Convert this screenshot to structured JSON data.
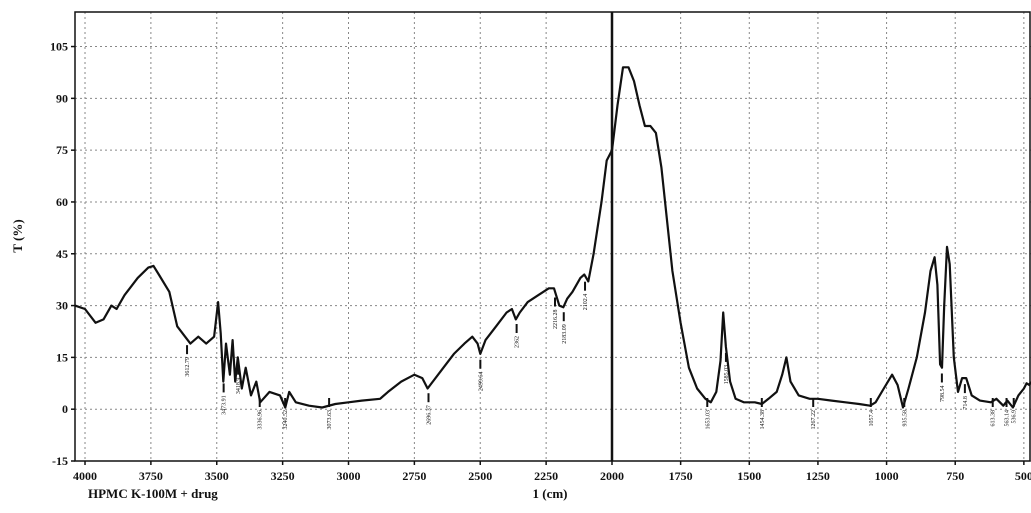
{
  "chart_data": [
    {
      "type": "line",
      "ylabel": "T (%)",
      "xlabel": "1 (cm)",
      "annotation": "HPMC K-100M + drug",
      "xlim": [
        4038,
        2000
      ],
      "ylim": [
        -15,
        115
      ],
      "xticks": [
        4000,
        3750,
        3500,
        3250,
        3000,
        2750,
        2500,
        2250
      ],
      "yticks": [
        -15,
        0,
        15,
        30,
        45,
        60,
        75,
        90,
        105
      ],
      "grid": true,
      "color": "#111111",
      "x": [
        4038,
        4000,
        3960,
        3930,
        3900,
        3880,
        3850,
        3800,
        3760,
        3740,
        3720,
        3680,
        3650,
        3620,
        3600,
        3570,
        3540,
        3510,
        3495,
        3485,
        3475,
        3465,
        3450,
        3440,
        3430,
        3420,
        3405,
        3390,
        3370,
        3350,
        3335,
        3300,
        3260,
        3240,
        3225,
        3200,
        3150,
        3100,
        3050,
        3000,
        2950,
        2880,
        2850,
        2800,
        2750,
        2720,
        2700,
        2680,
        2640,
        2600,
        2560,
        2530,
        2510,
        2500,
        2480,
        2440,
        2400,
        2380,
        2365,
        2350,
        2320,
        2280,
        2240,
        2220,
        2200,
        2185,
        2170,
        2150,
        2120,
        2105,
        2090,
        2070,
        2040,
        2020,
        2000
      ],
      "values": [
        30,
        29,
        25,
        26,
        30,
        29,
        33,
        38,
        41,
        41.5,
        39,
        34,
        24,
        21,
        19,
        21,
        19,
        21,
        31,
        22,
        8,
        19,
        10,
        20,
        8,
        15,
        6,
        12,
        4,
        8,
        2,
        5,
        4,
        0.5,
        5,
        2,
        1,
        0.5,
        1.5,
        2,
        2.5,
        3,
        5,
        8,
        10,
        9,
        6,
        8,
        12,
        16,
        19,
        21,
        19,
        16,
        20,
        24,
        28,
        29,
        26,
        28,
        31,
        33,
        35,
        35,
        30,
        29.5,
        32,
        34,
        38,
        39,
        37,
        45,
        60,
        72,
        75
      ],
      "peaks": [
        3612.79,
        3473.91,
        3418.9,
        3336.96,
        3240.52,
        3073.63,
        2696.37,
        2499.64,
        2362.0,
        2216.28,
        2183.09,
        2102.4
      ]
    },
    {
      "type": "line",
      "xlim": [
        2000,
        474
      ],
      "ylim": [
        -15,
        115
      ],
      "xticks": [
        2000,
        1750,
        1500,
        1250,
        1000,
        750,
        500
      ],
      "grid": true,
      "color": "#111111",
      "x": [
        2000,
        1980,
        1960,
        1940,
        1920,
        1900,
        1880,
        1860,
        1840,
        1820,
        1800,
        1780,
        1750,
        1720,
        1690,
        1660,
        1640,
        1620,
        1605,
        1595,
        1585,
        1570,
        1550,
        1520,
        1480,
        1454,
        1430,
        1400,
        1380,
        1365,
        1350,
        1320,
        1280,
        1250,
        1200,
        1150,
        1100,
        1060,
        1040,
        1010,
        980,
        960,
        940,
        920,
        890,
        860,
        840,
        825,
        815,
        805,
        798,
        790,
        780,
        770,
        755,
        740,
        725,
        710,
        690,
        660,
        620,
        600,
        575,
        560,
        540,
        520,
        500,
        490,
        480,
        474
      ],
      "values": [
        75,
        88,
        99,
        99,
        95,
        88,
        82,
        82,
        80,
        70,
        55,
        40,
        25,
        12,
        6,
        3,
        2,
        5,
        14,
        28,
        18,
        8,
        3,
        2,
        2,
        1.5,
        3,
        5,
        10,
        15,
        8,
        4,
        3,
        3,
        2.5,
        2,
        1.5,
        1,
        2,
        6,
        10,
        7,
        0.5,
        6,
        15,
        28,
        40,
        44,
        36,
        13,
        12,
        30,
        47,
        42,
        15,
        5,
        9,
        9,
        4,
        2.5,
        2,
        3,
        1,
        2.5,
        0.5,
        4,
        6,
        7.5,
        7,
        8
      ],
      "peaks": [
        1653.03,
        1585.03,
        1454.38,
        1267.22,
        1057.4,
        935.58,
        798.54,
        714.8,
        613.38,
        563.14,
        536.9,
        460.73
      ]
    }
  ]
}
